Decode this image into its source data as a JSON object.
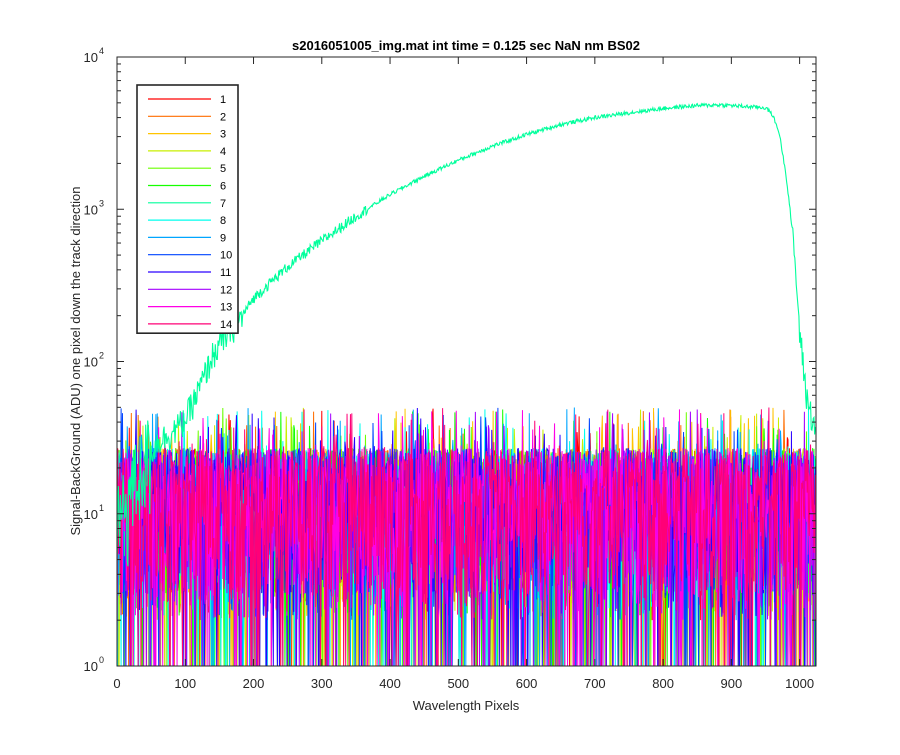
{
  "chart_data": {
    "type": "line",
    "title": "s2016051005_img.mat int time = 0.125 sec  NaN nm BS02",
    "xlabel": "Wavelength Pixels",
    "ylabel": "Signal-BackGround (ADU) one pixel down the track direction",
    "xlim": [
      0,
      1024
    ],
    "ylim": [
      1,
      10000
    ],
    "yscale": "log",
    "xticks": [
      0,
      100,
      200,
      300,
      400,
      500,
      600,
      700,
      800,
      900,
      1000
    ],
    "xtick_labels": [
      "0",
      "100",
      "200",
      "300",
      "400",
      "500",
      "600",
      "700",
      "800",
      "900",
      "1000"
    ],
    "yticks": [
      1,
      10,
      100,
      1000,
      10000
    ],
    "ytick_labels": [
      {
        "base": "10",
        "exp": "0"
      },
      {
        "base": "10",
        "exp": "1"
      },
      {
        "base": "10",
        "exp": "2"
      },
      {
        "base": "10",
        "exp": "3"
      },
      {
        "base": "10",
        "exp": "4"
      }
    ],
    "grid": false,
    "legend_position": "top-left",
    "legend_entries": [
      "1",
      "2",
      "3",
      "4",
      "5",
      "6",
      "7",
      "8",
      "9",
      "10",
      "11",
      "12",
      "13",
      "14"
    ],
    "series_colors": [
      "#ff0000",
      "#ff6d00",
      "#ffc400",
      "#c8ef00",
      "#6bff00",
      "#16ff00",
      "#00ff9c",
      "#00ffee",
      "#00a6ff",
      "#0044ff",
      "#2a00ff",
      "#a400ff",
      "#ff00e6",
      "#ff0077"
    ],
    "noise_series": {
      "description": "Series 1-6 and 8-14 are noise between about 1 and 50 ADU across all pixels",
      "typical_range": [
        1,
        50
      ]
    },
    "signal_series": {
      "name": "7",
      "x": [
        0,
        20,
        40,
        60,
        80,
        100,
        120,
        140,
        160,
        180,
        200,
        250,
        300,
        350,
        400,
        450,
        500,
        550,
        600,
        650,
        700,
        750,
        800,
        850,
        880,
        900,
        930,
        950,
        960,
        970,
        980,
        990,
        1000,
        1010,
        1020
      ],
      "values": [
        8,
        14,
        22,
        30,
        34,
        42,
        65,
        110,
        150,
        190,
        260,
        420,
        620,
        900,
        1250,
        1650,
        2100,
        2600,
        3100,
        3600,
        4000,
        4300,
        4600,
        4800,
        4850,
        4800,
        4700,
        4650,
        4200,
        3200,
        1700,
        700,
        160,
        60,
        40
      ]
    }
  }
}
